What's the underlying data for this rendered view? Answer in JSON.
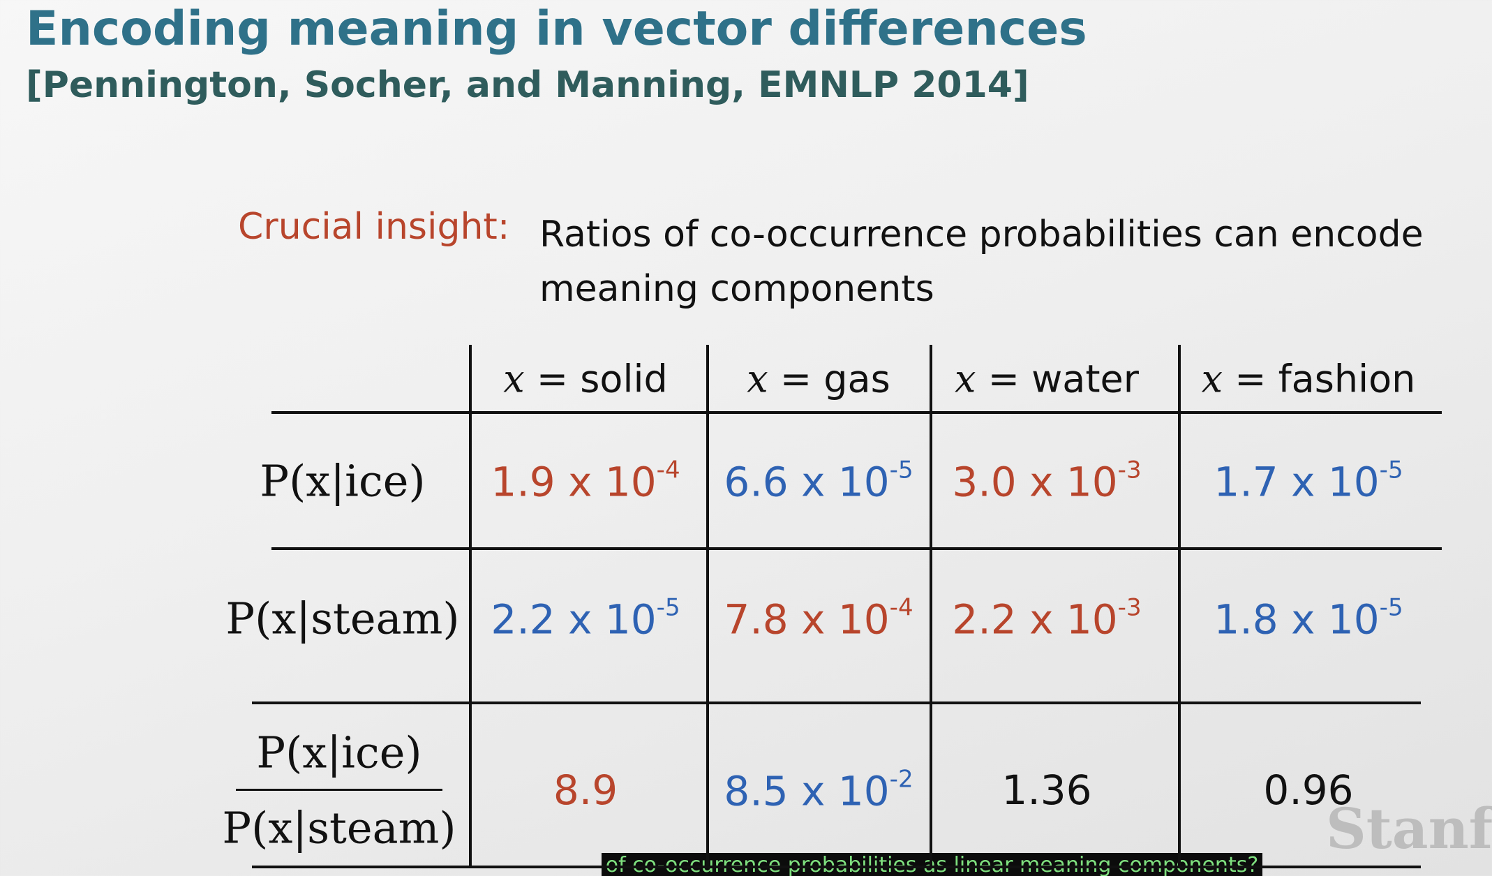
{
  "header": {
    "title": "Encoding meaning in vector differences",
    "citation": "[Pennington, Socher, and Manning, EMNLP 2014]"
  },
  "insight": {
    "label": "Crucial insight:",
    "text": "Ratios of co-occurrence probabilities can encode meaning components"
  },
  "table": {
    "columns": [
      {
        "var": "x",
        "rest": "= solid"
      },
      {
        "var": "x",
        "rest": "= gas"
      },
      {
        "var": "x",
        "rest": "= water"
      },
      {
        "var": "x",
        "rest": "= fashion"
      }
    ],
    "row_labels": [
      "P(x|ice)",
      "P(x|steam)"
    ],
    "ratio_label": {
      "numerator": "P(x|ice)",
      "denominator": "P(x|steam)"
    },
    "rows": [
      [
        {
          "text": "1.9 x 10",
          "exp": "-4",
          "color": "red"
        },
        {
          "text": "6.6 x 10",
          "exp": "-5",
          "color": "blue"
        },
        {
          "text": "3.0 x 10",
          "exp": "-3",
          "color": "red"
        },
        {
          "text": "1.7 x 10",
          "exp": "-5",
          "color": "blue"
        }
      ],
      [
        {
          "text": "2.2 x 10",
          "exp": "-5",
          "color": "blue"
        },
        {
          "text": "7.8 x 10",
          "exp": "-4",
          "color": "red"
        },
        {
          "text": "2.2 x 10",
          "exp": "-3",
          "color": "red"
        },
        {
          "text": "1.8 x 10",
          "exp": "-5",
          "color": "blue"
        }
      ],
      [
        {
          "text": "8.9",
          "color": "red"
        },
        {
          "text": "8.5 x 10",
          "exp": "-2",
          "color": "blue"
        },
        {
          "text": "1.36",
          "color": "black"
        },
        {
          "text": "0.96",
          "color": "black"
        }
      ]
    ]
  },
  "watermark": "Stanfo",
  "caption": "of co-occurrence probabilities as linear meaning components?"
}
